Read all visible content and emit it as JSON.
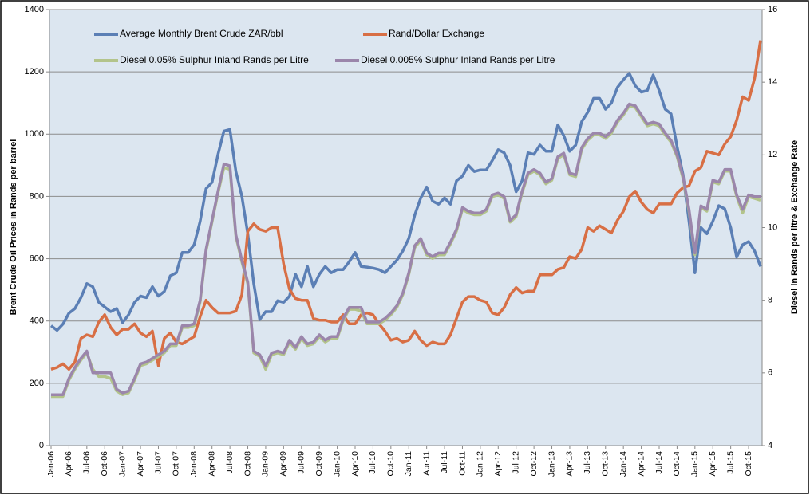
{
  "chart_data": {
    "type": "line",
    "ylabel": "Brent Crude Oil Prices in Rands per barrel",
    "y2label": "Diesel in Rands per litre & Exchange Rate",
    "categories": [
      "Jan-06",
      null,
      null,
      "Apr-06",
      null,
      null,
      "Jul-06",
      null,
      null,
      "Oct-06",
      null,
      null,
      "Jan-07",
      null,
      null,
      "Apr-07",
      null,
      null,
      "Jul-07",
      null,
      null,
      "Oct-07",
      null,
      null,
      "Jan-08",
      null,
      null,
      "Apr-08",
      null,
      null,
      "Jul-08",
      null,
      null,
      "Oct-08",
      null,
      null,
      "Jan-09",
      null,
      null,
      "Apr-09",
      null,
      null,
      "Jul-09",
      null,
      null,
      "Oct-09",
      null,
      null,
      "Jan-10",
      null,
      null,
      "Apr-10",
      null,
      null,
      "Jul-10",
      null,
      null,
      "Oct-10",
      null,
      null,
      "Jan-11",
      null,
      null,
      "Apr-11",
      null,
      null,
      "Jul-11",
      null,
      null,
      "Oct-11",
      null,
      null,
      "Jan-12",
      null,
      null,
      "Apr-12",
      null,
      null,
      "Jul-12",
      null,
      null,
      "Oct-12",
      null,
      null,
      "Jan-13",
      null,
      null,
      "Apr-13",
      null,
      null,
      "Jul-13",
      null,
      null,
      "Oct-13",
      null,
      null,
      "Jan-14",
      null,
      null,
      "Apr-14",
      null,
      null,
      "Jul-14",
      null,
      null,
      "Oct-14",
      null,
      null,
      "Jan-15",
      null,
      null,
      "Apr-15",
      null,
      null,
      "Jul-15",
      null,
      null,
      "Oct-15",
      null,
      null
    ],
    "series": [
      {
        "name": "Average Monthly Brent Crude ZAR/bbl",
        "color": "#5b7fb5",
        "axis": "y",
        "values": [
          385,
          370,
          390,
          425,
          440,
          475,
          520,
          510,
          460,
          445,
          430,
          440,
          395,
          420,
          460,
          480,
          475,
          510,
          480,
          495,
          545,
          555,
          620,
          620,
          645,
          720,
          825,
          845,
          935,
          1010,
          1015,
          880,
          800,
          680,
          520,
          405,
          430,
          430,
          465,
          460,
          480,
          550,
          510,
          575,
          510,
          550,
          575,
          555,
          565,
          565,
          590,
          620,
          575,
          573,
          570,
          565,
          555,
          575,
          595,
          625,
          665,
          740,
          795,
          830,
          785,
          775,
          795,
          775,
          850,
          865,
          900,
          880,
          885,
          885,
          915,
          950,
          940,
          900,
          815,
          850,
          940,
          935,
          965,
          945,
          945,
          1030,
          995,
          945,
          965,
          1040,
          1070,
          1115,
          1115,
          1080,
          1100,
          1150,
          1175,
          1195,
          1155,
          1135,
          1140,
          1190,
          1140,
          1080,
          1065,
          960,
          870,
          720,
          555,
          700,
          680,
          720,
          770,
          760,
          700,
          605,
          645,
          655,
          625,
          575
        ]
      },
      {
        "name": "Rand/Dollar Exchange",
        "color": "#d86f45",
        "axis": "y2",
        "values": [
          6.1,
          6.15,
          6.25,
          6.1,
          6.3,
          6.95,
          7.05,
          7.0,
          7.4,
          7.6,
          7.25,
          7.05,
          7.2,
          7.2,
          7.35,
          7.1,
          7.0,
          7.15,
          6.2,
          6.95,
          7.1,
          6.85,
          6.8,
          6.9,
          7.0,
          7.55,
          8.0,
          7.8,
          7.65,
          7.65,
          7.65,
          7.7,
          8.15,
          9.9,
          10.1,
          9.95,
          9.9,
          10.0,
          10.0,
          9.0,
          8.3,
          8.05,
          8.0,
          8.0,
          7.5,
          7.45,
          7.45,
          7.4,
          7.4,
          7.6,
          7.35,
          7.35,
          7.6,
          7.65,
          7.6,
          7.35,
          7.15,
          6.9,
          6.95,
          6.85,
          6.9,
          7.15,
          6.9,
          6.75,
          6.85,
          6.8,
          6.8,
          7.05,
          7.5,
          7.95,
          8.1,
          8.1,
          8.0,
          7.95,
          7.65,
          7.6,
          7.8,
          8.15,
          8.35,
          8.2,
          8.25,
          8.25,
          8.7,
          8.7,
          8.7,
          8.85,
          8.9,
          9.2,
          9.15,
          9.4,
          10.0,
          9.9,
          10.05,
          9.95,
          9.85,
          10.2,
          10.45,
          10.85,
          11.0,
          10.7,
          10.5,
          10.4,
          10.65,
          10.65,
          10.65,
          10.95,
          11.1,
          11.15,
          11.55,
          11.65,
          12.1,
          12.05,
          12.0,
          12.3,
          12.5,
          12.95,
          13.6,
          13.5,
          14.1,
          15.15
        ]
      },
      {
        "name": "Diesel 0.05% Sulphur Inland Rands per Litre",
        "color": "#b3c48b",
        "axis": "y2",
        "values": [
          5.35,
          5.35,
          5.35,
          5.8,
          6.1,
          6.35,
          6.55,
          6.1,
          5.9,
          5.9,
          5.85,
          5.5,
          5.4,
          5.45,
          5.8,
          6.2,
          6.25,
          6.35,
          6.45,
          6.55,
          6.75,
          6.75,
          7.25,
          7.25,
          7.3,
          7.95,
          9.35,
          10.15,
          10.95,
          11.65,
          11.6,
          9.75,
          9.05,
          8.45,
          6.55,
          6.45,
          6.1,
          6.5,
          6.55,
          6.5,
          6.85,
          6.65,
          6.95,
          6.75,
          6.8,
          7.0,
          6.85,
          6.95,
          6.95,
          7.45,
          7.75,
          7.75,
          7.7,
          7.35,
          7.35,
          7.35,
          7.45,
          7.6,
          7.8,
          8.15,
          8.7,
          9.45,
          9.65,
          9.25,
          9.15,
          9.25,
          9.25,
          9.55,
          9.9,
          10.5,
          10.4,
          10.35,
          10.35,
          10.45,
          10.85,
          10.9,
          10.8,
          10.15,
          10.3,
          10.95,
          11.45,
          11.55,
          11.45,
          11.2,
          11.3,
          11.9,
          12.0,
          11.45,
          11.4,
          12.15,
          12.4,
          12.55,
          12.55,
          12.45,
          12.6,
          12.9,
          13.1,
          13.35,
          13.3,
          13.05,
          12.8,
          12.85,
          12.8,
          12.55,
          12.35,
          11.95,
          11.35,
          10.45,
          9.25,
          10.55,
          10.45,
          11.25,
          11.2,
          11.55,
          11.55,
          10.85,
          10.4,
          10.85,
          10.8,
          10.75
        ]
      },
      {
        "name": "Diesel 0.005% Sulphur Inland Rands per Litre",
        "color": "#9b86ab",
        "axis": "y2",
        "values": [
          5.4,
          5.4,
          5.4,
          5.85,
          6.15,
          6.4,
          6.6,
          6.0,
          6.0,
          6.0,
          6.0,
          5.55,
          5.45,
          5.5,
          5.85,
          6.25,
          6.3,
          6.4,
          6.5,
          6.6,
          6.8,
          6.8,
          7.3,
          7.3,
          7.35,
          8.0,
          9.4,
          10.2,
          11.0,
          11.75,
          11.7,
          9.8,
          9.1,
          8.5,
          6.6,
          6.5,
          6.2,
          6.55,
          6.6,
          6.55,
          6.9,
          6.7,
          7.0,
          6.8,
          6.85,
          7.05,
          6.9,
          7.0,
          7.0,
          7.5,
          7.8,
          7.8,
          7.8,
          7.4,
          7.4,
          7.4,
          7.5,
          7.65,
          7.85,
          8.2,
          8.75,
          9.5,
          9.7,
          9.3,
          9.2,
          9.3,
          9.3,
          9.6,
          9.95,
          10.55,
          10.45,
          10.4,
          10.4,
          10.5,
          10.9,
          10.95,
          10.85,
          10.2,
          10.35,
          11.0,
          11.5,
          11.6,
          11.5,
          11.25,
          11.35,
          11.95,
          12.05,
          11.5,
          11.45,
          12.2,
          12.45,
          12.6,
          12.6,
          12.5,
          12.65,
          12.95,
          13.15,
          13.4,
          13.35,
          13.1,
          12.85,
          12.9,
          12.85,
          12.6,
          12.4,
          12.0,
          11.4,
          10.5,
          9.3,
          10.6,
          10.5,
          11.3,
          11.25,
          11.6,
          11.6,
          10.9,
          10.5,
          10.9,
          10.85,
          10.85
        ]
      }
    ],
    "ylim": [
      0,
      1400
    ],
    "yticks": [
      0,
      200,
      400,
      600,
      800,
      1000,
      1200,
      1400
    ],
    "y2lim": [
      4,
      16
    ],
    "y2ticks": [
      4,
      6,
      8,
      10,
      12,
      14,
      16
    ],
    "grid": true,
    "legend": "top",
    "background": "#dce6f0"
  }
}
